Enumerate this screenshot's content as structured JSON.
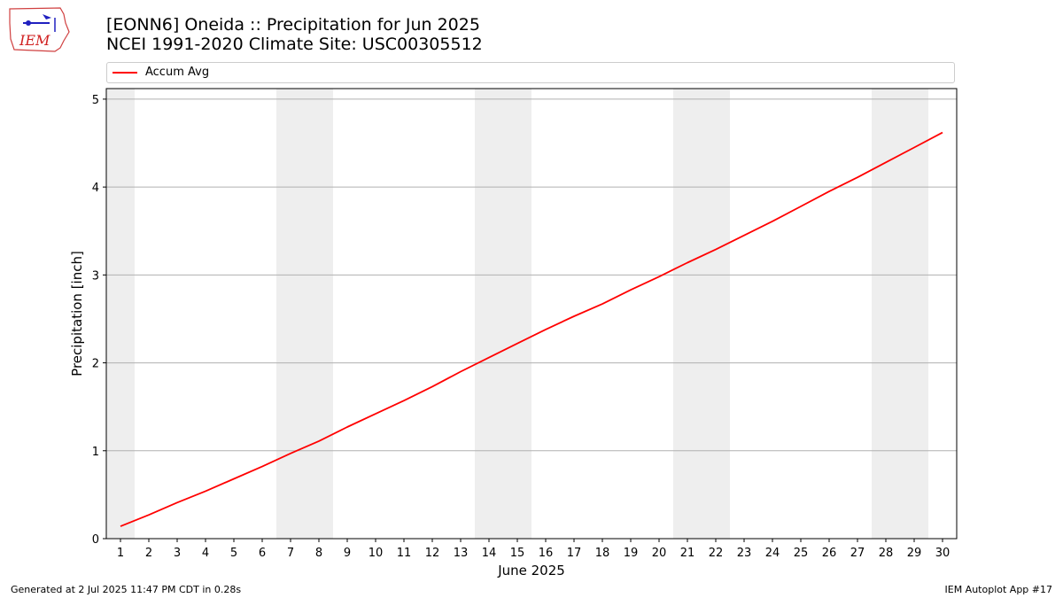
{
  "header": {
    "title_line1": "[EONN6] Oneida :: Precipitation for Jun 2025",
    "title_line2": "NCEI 1991-2020 Climate Site: USC00305512",
    "logo_text": "IEM"
  },
  "legend": {
    "label": "Accum Avg",
    "color": "#ff0000"
  },
  "footer": {
    "left": "Generated at 2 Jul 2025 11:47 PM CDT in 0.28s",
    "right": "IEM Autoplot App #17"
  },
  "colors": {
    "weekend_shade": "#eeeeee",
    "grid": "#b0b0b0",
    "line": "#ff0000"
  },
  "chart_data": {
    "type": "line",
    "xlabel": "June 2025",
    "ylabel": "Precipitation [inch]",
    "xlim": [
      0.5,
      30.5
    ],
    "ylim": [
      0,
      5.12
    ],
    "x_ticks": [
      1,
      2,
      3,
      4,
      5,
      6,
      7,
      8,
      9,
      10,
      11,
      12,
      13,
      14,
      15,
      16,
      17,
      18,
      19,
      20,
      21,
      22,
      23,
      24,
      25,
      26,
      27,
      28,
      29,
      30
    ],
    "y_ticks": [
      0,
      1,
      2,
      3,
      4,
      5
    ],
    "grid": "horizontal",
    "shaded_days": [
      1,
      7,
      8,
      14,
      15,
      21,
      22,
      28,
      29
    ],
    "series": [
      {
        "name": "Accum Avg",
        "x": [
          1,
          2,
          3,
          4,
          5,
          6,
          7,
          8,
          9,
          10,
          11,
          12,
          13,
          14,
          15,
          16,
          17,
          18,
          19,
          20,
          21,
          22,
          23,
          24,
          25,
          26,
          27,
          28,
          29,
          30
        ],
        "values": [
          0.14,
          0.27,
          0.41,
          0.54,
          0.68,
          0.82,
          0.97,
          1.11,
          1.27,
          1.42,
          1.57,
          1.73,
          1.9,
          2.06,
          2.22,
          2.38,
          2.53,
          2.67,
          2.83,
          2.98,
          3.14,
          3.29,
          3.45,
          3.61,
          3.78,
          3.95,
          4.11,
          4.28,
          4.45,
          4.62
        ]
      }
    ]
  }
}
